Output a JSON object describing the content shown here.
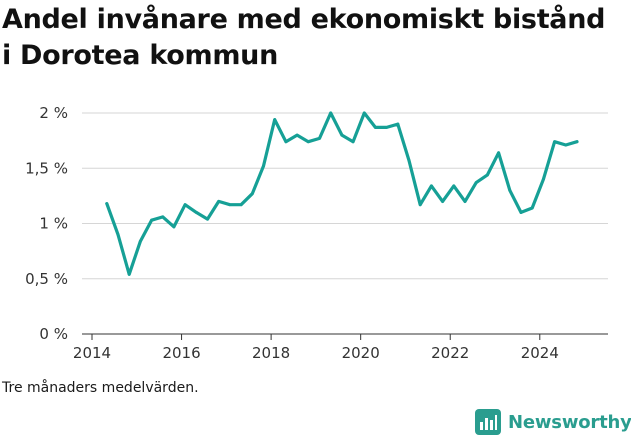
{
  "title": "Andel invånare med ekonomiskt bistånd i Dorotea kommun",
  "footnote": "Tre månaders medelvärden.",
  "brand": {
    "name": "Newsworthy",
    "icon": "bar-chart-icon",
    "color": "#2a9d8f"
  },
  "chart_data": {
    "type": "line",
    "title": "Andel invånare med ekonomiskt bistånd i Dorotea kommun",
    "xlabel": "",
    "ylabel": "",
    "grid": true,
    "legend": "none",
    "line_color": "#16a096",
    "xlim": [
      2014,
      2025.3
    ],
    "ylim": [
      0,
      2
    ],
    "x_ticks": [
      2014,
      2016,
      2018,
      2020,
      2022,
      2024
    ],
    "x_tick_labels": [
      "2014",
      "2016",
      "2018",
      "2020",
      "2022",
      "2024"
    ],
    "y_ticks": [
      0,
      0.5,
      1,
      1.5,
      2
    ],
    "y_tick_labels": [
      "0 %",
      "0,5 %",
      "1 %",
      "1,5 %",
      "2 %"
    ],
    "series": [
      {
        "points": [
          [
            2014.33,
            1.18
          ],
          [
            2014.58,
            0.9
          ],
          [
            2014.83,
            0.54
          ],
          [
            2015.08,
            0.84
          ],
          [
            2015.33,
            1.03
          ],
          [
            2015.58,
            1.06
          ],
          [
            2015.83,
            0.97
          ],
          [
            2016.08,
            1.17
          ],
          [
            2016.33,
            1.1
          ],
          [
            2016.58,
            1.04
          ],
          [
            2016.83,
            1.2
          ],
          [
            2017.08,
            1.17
          ],
          [
            2017.33,
            1.17
          ],
          [
            2017.58,
            1.27
          ],
          [
            2017.83,
            1.52
          ],
          [
            2018.08,
            1.94
          ],
          [
            2018.33,
            1.74
          ],
          [
            2018.58,
            1.8
          ],
          [
            2018.83,
            1.74
          ],
          [
            2019.08,
            1.77
          ],
          [
            2019.33,
            2.0
          ],
          [
            2019.58,
            1.8
          ],
          [
            2019.83,
            1.74
          ],
          [
            2020.08,
            2.0
          ],
          [
            2020.33,
            1.87
          ],
          [
            2020.58,
            1.87
          ],
          [
            2020.83,
            1.9
          ],
          [
            2021.08,
            1.57
          ],
          [
            2021.33,
            1.17
          ],
          [
            2021.58,
            1.34
          ],
          [
            2021.83,
            1.2
          ],
          [
            2022.08,
            1.34
          ],
          [
            2022.33,
            1.2
          ],
          [
            2022.58,
            1.37
          ],
          [
            2022.83,
            1.44
          ],
          [
            2023.08,
            1.64
          ],
          [
            2023.33,
            1.3
          ],
          [
            2023.58,
            1.1
          ],
          [
            2023.83,
            1.14
          ],
          [
            2024.08,
            1.4
          ],
          [
            2024.33,
            1.74
          ],
          [
            2024.58,
            1.71
          ],
          [
            2024.83,
            1.74
          ]
        ]
      }
    ]
  }
}
